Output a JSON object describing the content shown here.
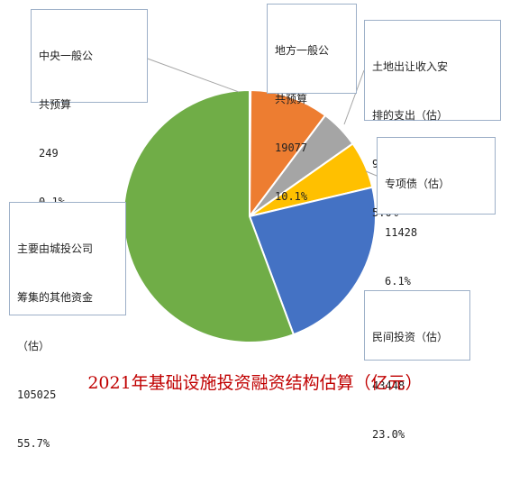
{
  "chart_data": {
    "type": "pie",
    "title": "2021年基础设施投资融资结构估算（亿元）",
    "title_color": "#c00000",
    "slices": [
      {
        "lines": [
          "中央一般公",
          "共预算"
        ],
        "value": 249,
        "percent": "0.1%",
        "color": "#4472c4"
      },
      {
        "lines": [
          "地方一般公",
          "共预算"
        ],
        "value": 19077,
        "percent": "10.1%",
        "color": "#ed7d31"
      },
      {
        "lines": [
          "土地出让收入安",
          "排的支出（估）"
        ],
        "value": 9431,
        "percent": "5.0%",
        "color": "#a5a5a5"
      },
      {
        "lines": [
          "专项债（估）"
        ],
        "value": 11428,
        "percent": "6.1%",
        "color": "#ffc000"
      },
      {
        "lines": [
          "民间投资（估）"
        ],
        "value": 43448,
        "percent": "23.0%",
        "color": "#4472c4"
      },
      {
        "lines": [
          "主要由城投公司",
          "筹集的其他资金",
          "（估）"
        ],
        "value": 105025,
        "percent": "55.7%",
        "color": "#70ad47"
      }
    ]
  }
}
